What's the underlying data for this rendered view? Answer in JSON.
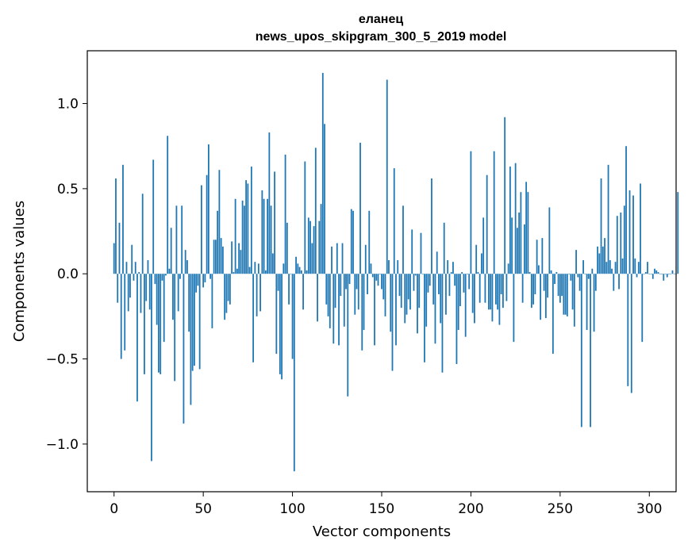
{
  "chart_data": {
    "type": "bar",
    "title_line1": "еланец",
    "title_line2": "news_upos_skipgram_300_5_2019 model",
    "xlabel": "Vector components",
    "ylabel": "Components values",
    "xlim": [
      -15,
      315
    ],
    "ylim": [
      -1.28,
      1.31
    ],
    "xticks": [
      0,
      50,
      100,
      150,
      200,
      250,
      300
    ],
    "xtick_labels": [
      "0",
      "50",
      "100",
      "150",
      "200",
      "250",
      "300"
    ],
    "yticks": [
      -1.0,
      -0.5,
      0.0,
      0.5,
      1.0
    ],
    "ytick_labels": [
      "−1.0",
      "−0.5",
      "0.0",
      "0.5",
      "1.0"
    ],
    "bar_color": "#1f77b4",
    "grid": false,
    "values": [
      0.18,
      0.56,
      -0.17,
      0.3,
      -0.5,
      0.64,
      -0.45,
      0.07,
      -0.22,
      -0.14,
      0.17,
      -0.04,
      0.07,
      -0.75,
      0.01,
      -0.23,
      0.47,
      -0.59,
      -0.16,
      0.08,
      -0.21,
      -1.1,
      0.67,
      -0.06,
      -0.3,
      -0.58,
      -0.59,
      -0.04,
      -0.4,
      -0.01,
      0.81,
      0.03,
      0.27,
      -0.27,
      -0.63,
      0.4,
      -0.22,
      -0.03,
      0.4,
      -0.88,
      0.14,
      0.08,
      -0.34,
      -0.77,
      -0.57,
      -0.54,
      -0.11,
      -0.07,
      -0.56,
      0.52,
      -0.08,
      -0.05,
      0.58,
      0.76,
      -0.03,
      -0.32,
      0.2,
      0.2,
      0.37,
      0.61,
      0.21,
      0.16,
      -0.27,
      -0.23,
      -0.16,
      -0.18,
      0.19,
      0.01,
      0.44,
      0.03,
      0.18,
      0.14,
      0.43,
      0.4,
      0.55,
      0.53,
      0.04,
      0.63,
      -0.52,
      0.07,
      -0.25,
      0.06,
      -0.22,
      0.49,
      0.44,
      0.02,
      0.44,
      0.83,
      0.4,
      0.12,
      0.6,
      -0.47,
      -0.1,
      -0.59,
      -0.62,
      0.06,
      0.7,
      0.3,
      -0.18,
      0.0,
      -0.5,
      -1.16,
      0.1,
      0.06,
      0.04,
      0.02,
      -0.21,
      0.66,
      0.02,
      0.33,
      0.31,
      0.18,
      0.28,
      0.74,
      -0.28,
      0.31,
      0.41,
      1.18,
      0.88,
      -0.18,
      -0.25,
      -0.32,
      0.16,
      -0.41,
      -0.2,
      0.18,
      -0.42,
      -0.13,
      0.18,
      -0.31,
      -0.09,
      -0.72,
      -0.06,
      0.38,
      0.37,
      -0.24,
      -0.09,
      -0.21,
      0.77,
      -0.45,
      -0.33,
      0.17,
      -0.12,
      0.37,
      0.06,
      -0.02,
      -0.42,
      -0.04,
      -0.07,
      0.0,
      -0.09,
      -0.15,
      -0.25,
      1.14,
      0.08,
      -0.34,
      -0.57,
      0.62,
      -0.42,
      0.08,
      -0.13,
      -0.2,
      0.4,
      -0.29,
      -0.24,
      -0.15,
      -0.21,
      0.26,
      -0.1,
      -0.01,
      -0.35,
      -0.2,
      0.24,
      0.0,
      -0.52,
      -0.31,
      -0.11,
      -0.07,
      0.56,
      -0.18,
      -0.41,
      0.13,
      -0.12,
      -0.29,
      -0.58,
      0.3,
      -0.24,
      0.08,
      -0.13,
      0.01,
      0.07,
      -0.07,
      -0.53,
      -0.33,
      -0.19,
      0.01,
      -0.11,
      -0.37,
      0.0,
      -0.09,
      0.72,
      -0.23,
      -0.29,
      0.17,
      0.01,
      -0.17,
      0.12,
      0.33,
      -0.17,
      0.58,
      -0.21,
      -0.21,
      -0.28,
      0.72,
      -0.18,
      -0.21,
      -0.3,
      -0.12,
      -0.2,
      0.92,
      -0.16,
      0.06,
      0.63,
      0.33,
      -0.4,
      0.65,
      0.27,
      0.36,
      0.48,
      -0.17,
      0.29,
      0.54,
      0.48,
      0.01,
      -0.2,
      -0.18,
      -0.12,
      0.2,
      0.05,
      -0.27,
      0.21,
      -0.1,
      -0.26,
      -0.14,
      0.39,
      0.02,
      -0.47,
      -0.06,
      0.01,
      -0.13,
      -0.17,
      -0.13,
      -0.24,
      -0.24,
      -0.25,
      0.0,
      -0.04,
      -0.21,
      -0.31,
      0.14,
      -0.02,
      -0.1,
      -0.9,
      0.08,
      0.0,
      -0.33,
      -0.03,
      -0.9,
      0.03,
      -0.34,
      -0.1,
      0.16,
      0.12,
      0.56,
      0.16,
      0.21,
      0.07,
      0.64,
      0.08,
      0.03,
      -0.1,
      0.07,
      0.34,
      -0.09,
      0.36,
      0.09,
      0.4,
      0.75,
      -0.66,
      0.49,
      -0.7,
      0.46,
      0.09,
      -0.02,
      0.07,
      0.53,
      -0.4,
      0.0,
      0.01,
      0.07,
      0.0,
      0.0,
      -0.03,
      0.03,
      0.02,
      0.01,
      0.0,
      0.0,
      -0.04,
      0.0,
      -0.02,
      0.0,
      0.0,
      0.02,
      0.0,
      0.0,
      0.48
    ]
  }
}
